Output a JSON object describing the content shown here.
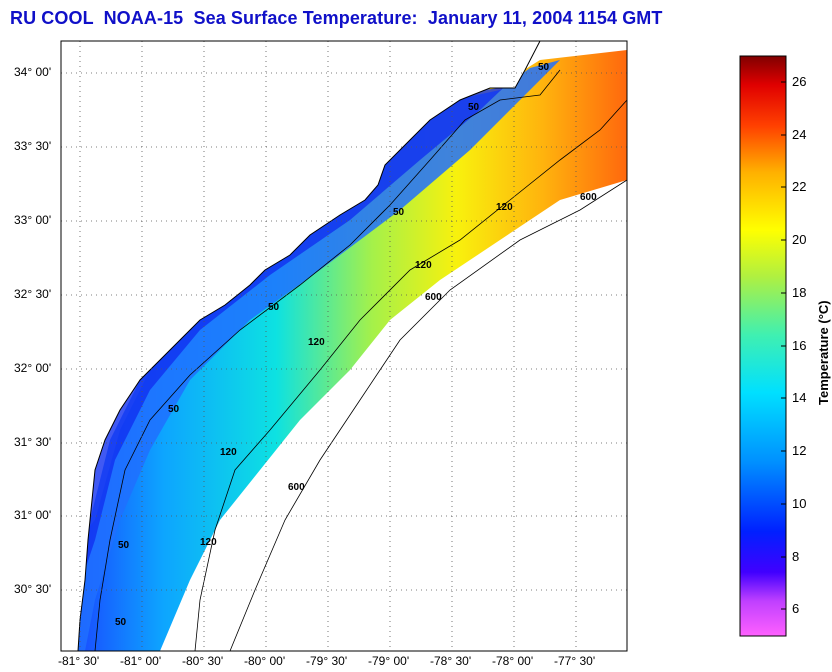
{
  "title": "RU COOL  NOAA-15  Sea Surface Temperature:  January 11, 2004 1154 GMT",
  "latitude_labels": [
    "34° 00'",
    "33° 30'",
    "33° 00'",
    "32° 30'",
    "32° 00'",
    "31° 30'",
    "31° 00'",
    "30° 30'"
  ],
  "longitude_labels": [
    "-81° 30'",
    "-81° 00'",
    "-80° 30'",
    "-80° 00'",
    "-79° 30'",
    "-79° 00'",
    "-78° 30'",
    "-78° 00'",
    "-77° 30'"
  ],
  "isobath_labels": [
    "50",
    "50",
    "50",
    "50",
    "50",
    "50",
    "50",
    "120",
    "120",
    "120",
    "120",
    "120",
    "600",
    "600",
    "600"
  ],
  "colorbar": {
    "title": "Temperature (°C)",
    "ticks": [
      "26",
      "24",
      "22",
      "20",
      "18",
      "16",
      "14",
      "12",
      "10",
      "8",
      "6"
    ],
    "range": [
      5,
      27
    ]
  },
  "colors": {
    "title": "#1010c8",
    "land": "#ffffff",
    "cloud": "#ffffff"
  }
}
